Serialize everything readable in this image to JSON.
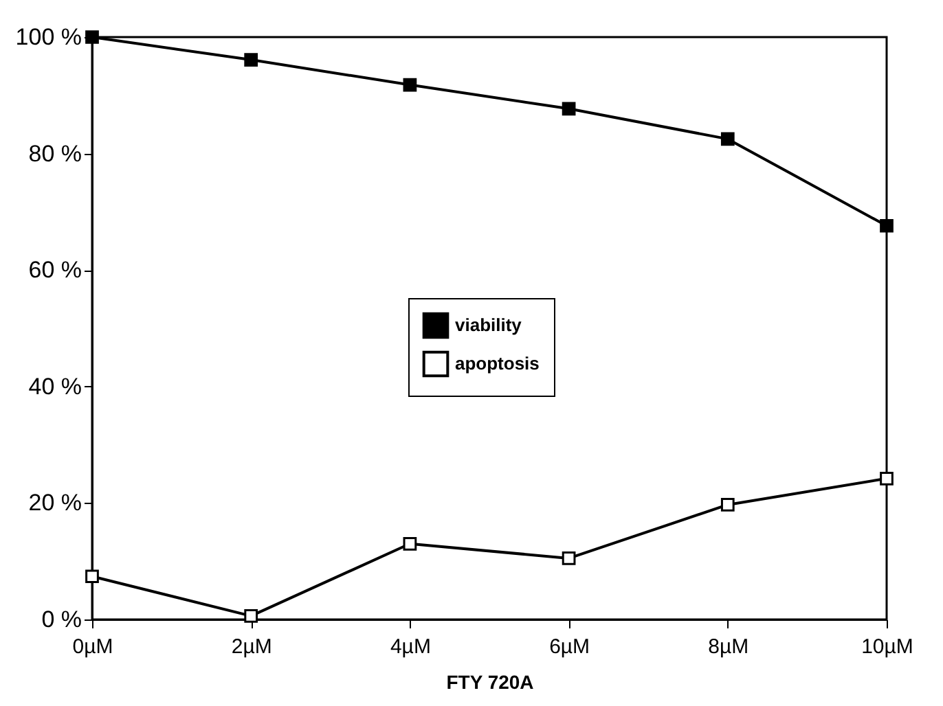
{
  "chart_data": {
    "type": "line",
    "xlabel": "FTY 720A",
    "categories": [
      "0µM",
      "2µM",
      "4µM",
      "6µM",
      "8µM",
      "10µM"
    ],
    "series": [
      {
        "name": "viability",
        "color": "#000000",
        "marker": "square",
        "values": [
          100,
          96.1,
          91.8,
          87.7,
          82.5,
          67.6
        ]
      },
      {
        "name": "apoptosis",
        "color": "#000000",
        "marker": "square",
        "values": [
          7.4,
          0.6,
          13,
          10.5,
          19.7,
          24.2
        ]
      }
    ],
    "ylim": [
      0,
      100
    ],
    "yticks": [
      {
        "value": 0,
        "label": "0 %"
      },
      {
        "value": 20,
        "label": "20 %"
      },
      {
        "value": 40,
        "label": "40 %"
      },
      {
        "value": 60,
        "label": "60 %"
      },
      {
        "value": 80,
        "label": "80 %"
      },
      {
        "value": 100,
        "label": "100 %"
      }
    ],
    "grid": false,
    "legend": "center",
    "line_style": "solid"
  }
}
